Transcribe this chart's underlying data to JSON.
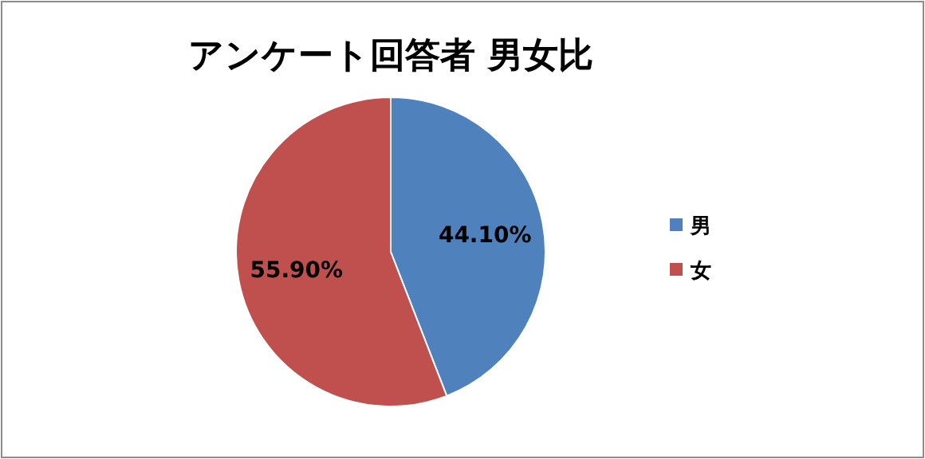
{
  "chart_data": {
    "type": "pie",
    "title": "アンケート回答者 男女比",
    "categories": [
      "男",
      "女"
    ],
    "values": [
      44.1,
      55.9
    ],
    "colors": [
      "#4f81bd",
      "#c0504d"
    ],
    "value_labels": [
      "44.10%",
      "55.90%"
    ],
    "legend": "right"
  }
}
